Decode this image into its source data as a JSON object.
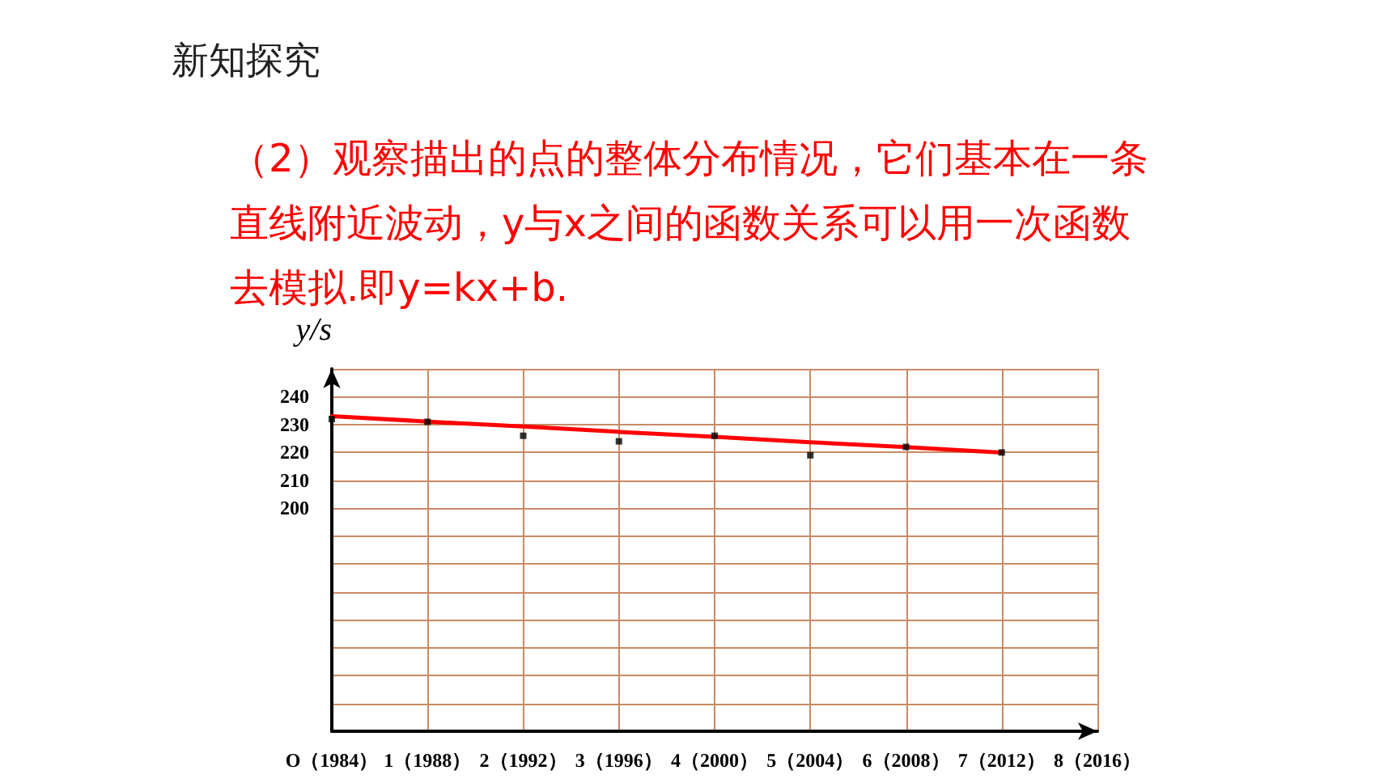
{
  "chart_data": {
    "type": "scatter",
    "title": "新知探究",
    "subtitle": "（2）观察描出的点的整体分布情况，它们基本在一条直线附近波动，y与x之间的函数关系可以用一次函数去模拟.即y=kx+b.",
    "ylabel": "y/s",
    "categories": [
      "O（1984）",
      "1（1988）",
      "2（1992）",
      "3（1996）",
      "4（2000）",
      "5（2004）",
      "6（2008）",
      "7（2012）",
      "8（2016）"
    ],
    "series": [
      {
        "color": "#000000",
        "values": [
          232,
          231,
          226,
          224,
          226,
          219,
          222,
          220,
          null
        ]
      },
      {
        "type": "line",
        "color": "#ff0000",
        "values": [
          233,
          231.1,
          229.3,
          227.4,
          225.6,
          223.7,
          221.9,
          220,
          null
        ],
        "marker": "none",
        "line_style": "solid"
      }
    ],
    "ylim": [
      120,
      250
    ],
    "yticks": [
      {
        "value": 130,
        "label": null
      },
      {
        "value": 140,
        "label": null
      },
      {
        "value": 150,
        "label": null
      },
      {
        "value": 160,
        "label": null
      },
      {
        "value": 170,
        "label": null
      },
      {
        "value": 180,
        "label": null
      },
      {
        "value": 190,
        "label": null
      },
      200,
      210,
      220,
      230,
      240,
      {
        "value": 250,
        "label": null
      }
    ],
    "grid": true,
    "marker": "square"
  }
}
